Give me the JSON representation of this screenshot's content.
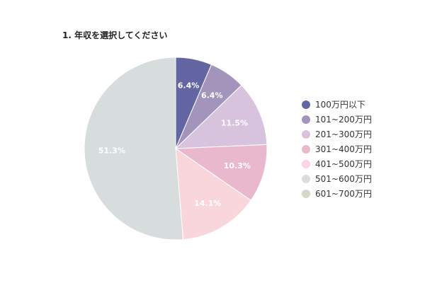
{
  "chart_data": {
    "type": "pie",
    "title": "1. 年収を選択してください",
    "categories": [
      "100万円以下",
      "101~200万円",
      "201~300万円",
      "301~400万円",
      "401~500万円",
      "501~600万円",
      "601~700万円"
    ],
    "values": [
      6.4,
      6.4,
      11.5,
      10.3,
      14.1,
      51.3,
      0.0
    ],
    "value_labels": [
      "6.4%",
      "6.4%",
      "11.5%",
      "10.3%",
      "14.1%",
      "51.3%",
      ""
    ],
    "colors": [
      "#6366a3",
      "#a394bb",
      "#d7c3de",
      "#eab8cc",
      "#f9d6dc",
      "#d7dcdd",
      "#d4d8c6"
    ],
    "legend_position": "right"
  }
}
